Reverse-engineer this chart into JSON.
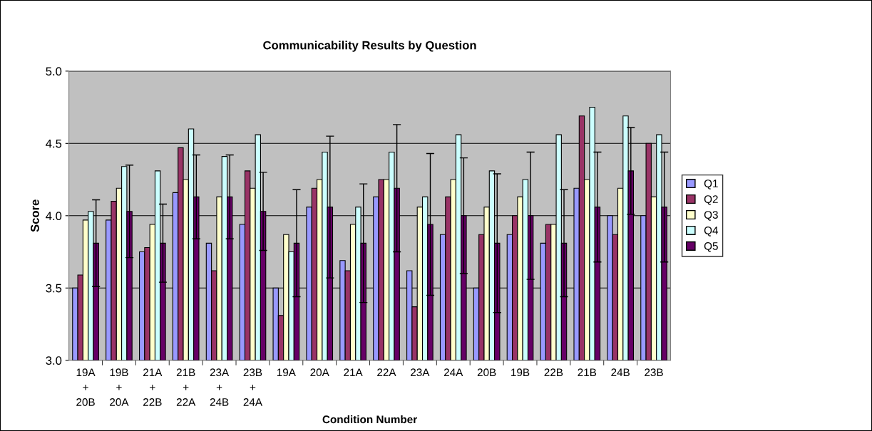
{
  "chart_data": {
    "type": "bar",
    "title": "Communicability Results by Question",
    "xlabel": "Condition Number",
    "ylabel": "Score",
    "categories": [
      "19A\n+\n20B",
      "19B\n+\n20A",
      "21A\n+\n22B",
      "21B\n+\n22A",
      "23A\n+\n24B",
      "23B\n+\n24A",
      "19A",
      "20A",
      "21A",
      "22A",
      "23A",
      "24A",
      "20B",
      "19B",
      "22B",
      "21B",
      "24B",
      "23B"
    ],
    "series": [
      {
        "name": "Q1",
        "color": "#9999ff",
        "values": [
          3.5,
          3.97,
          3.75,
          4.16,
          3.81,
          3.94,
          3.5,
          4.06,
          3.69,
          4.13,
          3.62,
          3.87,
          3.5,
          3.87,
          3.81,
          4.19,
          4.0,
          4.0
        ]
      },
      {
        "name": "Q2",
        "color": "#993366",
        "values": [
          3.59,
          4.1,
          3.78,
          4.47,
          3.62,
          4.31,
          3.31,
          4.19,
          3.62,
          4.25,
          3.37,
          4.13,
          3.87,
          4.0,
          3.94,
          4.69,
          3.87,
          4.5
        ]
      },
      {
        "name": "Q3",
        "color": "#ffffcc",
        "values": [
          3.97,
          4.19,
          3.94,
          4.25,
          4.13,
          4.19,
          3.87,
          4.25,
          3.94,
          4.25,
          4.06,
          4.25,
          4.06,
          4.13,
          3.94,
          4.25,
          4.19,
          4.13
        ]
      },
      {
        "name": "Q4",
        "color": "#ccffff",
        "values": [
          4.03,
          4.34,
          4.31,
          4.6,
          4.41,
          4.56,
          3.75,
          4.44,
          4.06,
          4.44,
          4.13,
          4.56,
          4.31,
          4.25,
          4.56,
          4.75,
          4.69,
          4.56
        ]
      },
      {
        "name": "Q5",
        "color": "#660066",
        "values": [
          3.81,
          4.03,
          3.81,
          4.13,
          4.13,
          4.03,
          3.81,
          4.06,
          3.81,
          4.19,
          3.94,
          4.0,
          3.81,
          4.0,
          3.81,
          4.06,
          4.31,
          4.06
        ],
        "errors": [
          0.3,
          0.32,
          0.27,
          0.29,
          0.29,
          0.27,
          0.37,
          0.49,
          0.41,
          0.44,
          0.49,
          0.4,
          0.48,
          0.44,
          0.37,
          0.38,
          0.3,
          0.38
        ]
      }
    ],
    "ylim": [
      3.0,
      5.0
    ],
    "yticks": [
      {
        "value": 3.0,
        "label": "3.0"
      },
      {
        "value": 3.5,
        "label": "3.5"
      },
      {
        "value": 4.0,
        "label": "4.0"
      },
      {
        "value": 4.5,
        "label": "4.5"
      },
      {
        "value": 5.0,
        "label": "5.0"
      }
    ],
    "grid": "y",
    "legend": "right"
  }
}
